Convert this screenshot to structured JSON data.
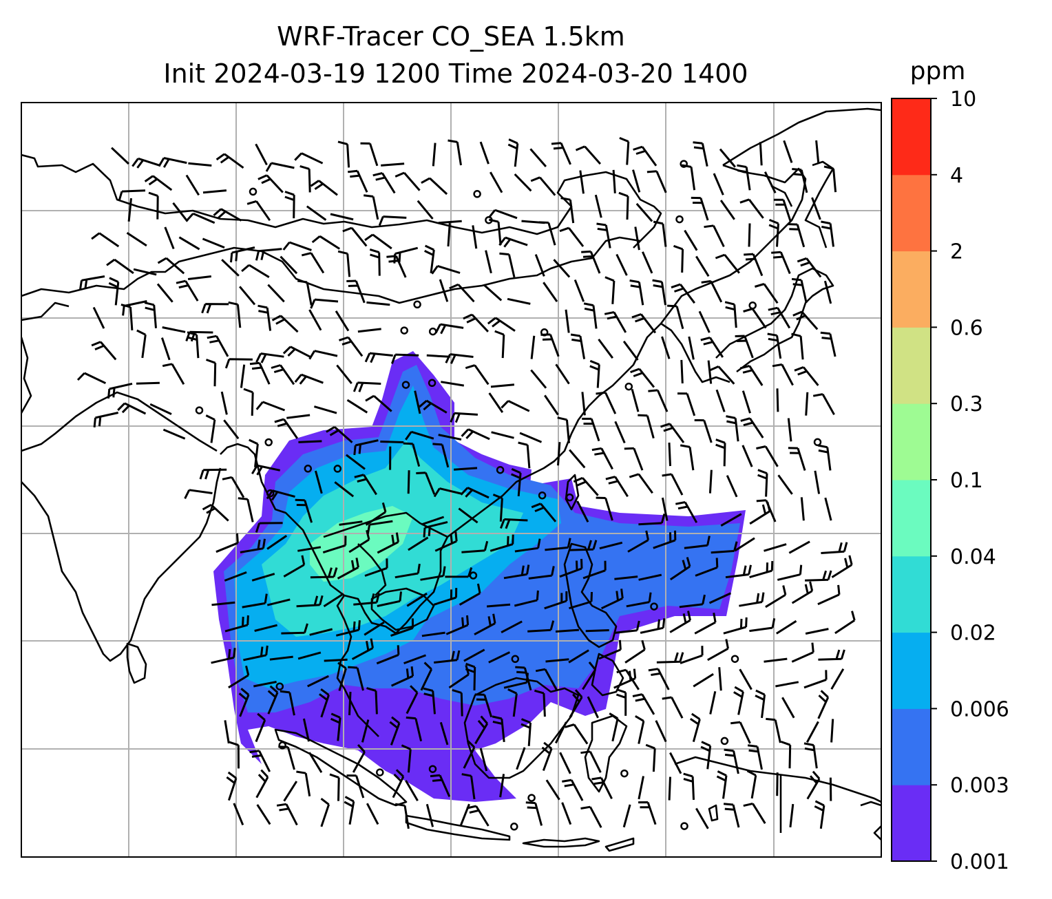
{
  "figure": {
    "title_line1": "WRF-Tracer CO_SEA 1.5km",
    "title_line2": "Init 2024-03-19 1200 Time 2024-03-20 1400"
  },
  "colorbar": {
    "unit": "ppm",
    "levels": [
      "0.001",
      "0.003",
      "0.006",
      "0.02",
      "0.04",
      "0.1",
      "0.3",
      "0.6",
      "2",
      "4",
      "10"
    ],
    "colors": [
      "#6a2df5",
      "#3573f2",
      "#06aef0",
      "#31dcd5",
      "#6bfbbf",
      "#9efb93",
      "#d0e284",
      "#fbad60",
      "#fe7340",
      "#fe2a18"
    ]
  },
  "map": {
    "gridlines": true,
    "wind_barbs": true,
    "plume_colors": {
      "c1": "#6a2df5",
      "c2": "#3573f2",
      "c3": "#06aef0",
      "c4": "#31dcd5",
      "c5": "#6bfbbf"
    }
  }
}
